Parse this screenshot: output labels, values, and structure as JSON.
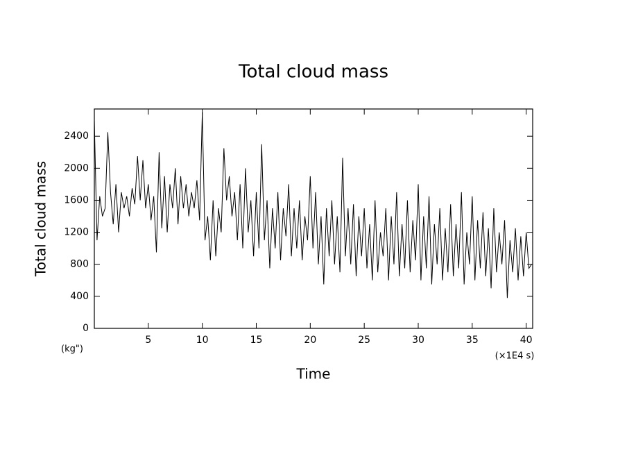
{
  "chart_data": {
    "type": "line",
    "title": "Total cloud mass",
    "y_label": "Total cloud mass",
    "x_label": "Time",
    "y_unit_label": "(kg\")",
    "x_unit_label": "(×1E4 s)",
    "color": "#000000",
    "xlim": [
      0,
      40.6
    ],
    "ylim": [
      0,
      2740
    ],
    "xticks": [
      5,
      10,
      15,
      20,
      25,
      30,
      35,
      40
    ],
    "yticks": [
      0,
      400,
      800,
      1200,
      1600,
      2000,
      2400
    ],
    "x": [
      0,
      0.25,
      0.5,
      0.75,
      1,
      1.25,
      1.5,
      1.75,
      2,
      2.25,
      2.5,
      2.75,
      3,
      3.25,
      3.5,
      3.75,
      4,
      4.25,
      4.5,
      4.75,
      5,
      5.25,
      5.5,
      5.75,
      6,
      6.25,
      6.5,
      6.75,
      7,
      7.25,
      7.5,
      7.75,
      8,
      8.25,
      8.5,
      8.75,
      9,
      9.25,
      9.5,
      9.75,
      10,
      10.25,
      10.5,
      10.75,
      11,
      11.25,
      11.5,
      11.75,
      12,
      12.25,
      12.5,
      12.75,
      13,
      13.25,
      13.5,
      13.75,
      14,
      14.25,
      14.5,
      14.75,
      15,
      15.25,
      15.5,
      15.75,
      16,
      16.25,
      16.5,
      16.75,
      17,
      17.25,
      17.5,
      17.75,
      18,
      18.25,
      18.5,
      18.75,
      19,
      19.25,
      19.5,
      19.75,
      20,
      20.25,
      20.5,
      20.75,
      21,
      21.25,
      21.5,
      21.75,
      22,
      22.25,
      22.5,
      22.75,
      23,
      23.25,
      23.5,
      23.75,
      24,
      24.25,
      24.5,
      24.75,
      25,
      25.25,
      25.5,
      25.75,
      26,
      26.25,
      26.5,
      26.75,
      27,
      27.25,
      27.5,
      27.75,
      28,
      28.25,
      28.5,
      28.75,
      29,
      29.25,
      29.5,
      29.75,
      30,
      30.25,
      30.5,
      30.75,
      31,
      31.25,
      31.5,
      31.75,
      32,
      32.25,
      32.5,
      32.75,
      33,
      33.25,
      33.5,
      33.75,
      34,
      34.25,
      34.5,
      34.75,
      35,
      35.25,
      35.5,
      35.75,
      36,
      36.25,
      36.5,
      36.75,
      37,
      37.25,
      37.5,
      37.75,
      38,
      38.25,
      38.5,
      38.75,
      39,
      39.25,
      39.5,
      39.75,
      40,
      40.25,
      40.5
    ],
    "values": [
      2600,
      1100,
      1650,
      1400,
      1500,
      2450,
      1700,
      1300,
      1800,
      1200,
      1700,
      1500,
      1650,
      1400,
      1750,
      1550,
      2150,
      1600,
      2100,
      1500,
      1800,
      1350,
      1650,
      950,
      2200,
      1250,
      1900,
      1200,
      1800,
      1500,
      2000,
      1300,
      1900,
      1500,
      1800,
      1400,
      1700,
      1500,
      1850,
      1350,
      2700,
      1100,
      1400,
      850,
      1600,
      900,
      1500,
      1200,
      2250,
      1600,
      1900,
      1400,
      1700,
      1100,
      1800,
      1000,
      2000,
      1200,
      1600,
      900,
      1700,
      1000,
      2300,
      1100,
      1600,
      750,
      1500,
      1000,
      1700,
      850,
      1500,
      1150,
      1800,
      900,
      1500,
      1000,
      1600,
      850,
      1400,
      1100,
      1900,
      1000,
      1700,
      800,
      1400,
      550,
      1500,
      900,
      1600,
      800,
      1400,
      700,
      2130,
      900,
      1500,
      800,
      1550,
      650,
      1400,
      900,
      1500,
      750,
      1300,
      600,
      1600,
      700,
      1200,
      900,
      1500,
      600,
      1400,
      800,
      1700,
      650,
      1300,
      750,
      1600,
      700,
      1350,
      850,
      1800,
      600,
      1400,
      750,
      1650,
      550,
      1300,
      800,
      1500,
      600,
      1250,
      700,
      1550,
      650,
      1300,
      750,
      1700,
      550,
      1200,
      800,
      1650,
      600,
      1350,
      750,
      1450,
      650,
      1250,
      500,
      1500,
      700,
      1200,
      800,
      1350,
      380,
      1100,
      700,
      1250,
      600,
      1150,
      650,
      1200,
      750,
      800
    ]
  }
}
